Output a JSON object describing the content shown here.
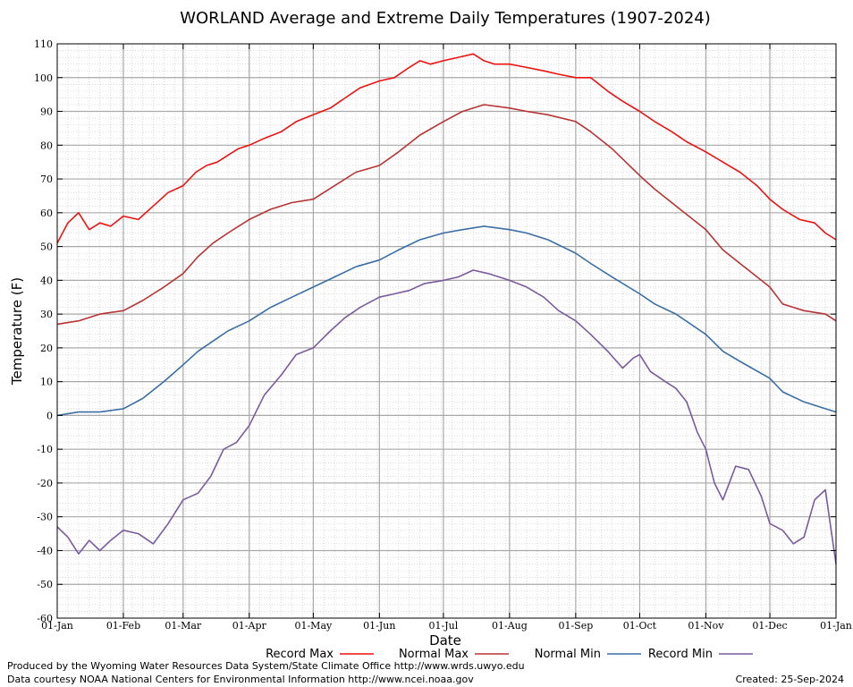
{
  "chart_data": {
    "type": "line",
    "title": "WORLAND Average and Extreme Daily Temperatures (1907-2024)",
    "xlabel": "Date",
    "ylabel": "Temperature (F)",
    "ylim": [
      -60,
      110
    ],
    "yticks": [
      -60,
      -50,
      -40,
      -30,
      -20,
      -10,
      0,
      10,
      20,
      30,
      40,
      50,
      60,
      70,
      80,
      90,
      100,
      110
    ],
    "xlim": [
      0,
      365
    ],
    "xticks": [
      {
        "day": 0,
        "label": "01-Jan"
      },
      {
        "day": 31,
        "label": "01-Feb"
      },
      {
        "day": 59,
        "label": "01-Mar"
      },
      {
        "day": 90,
        "label": "01-Apr"
      },
      {
        "day": 120,
        "label": "01-May"
      },
      {
        "day": 151,
        "label": "01-Jun"
      },
      {
        "day": 181,
        "label": "01-Jul"
      },
      {
        "day": 212,
        "label": "01-Aug"
      },
      {
        "day": 243,
        "label": "01-Sep"
      },
      {
        "day": 273,
        "label": "01-Oct"
      },
      {
        "day": 304,
        "label": "01-Nov"
      },
      {
        "day": 334,
        "label": "01-Dec"
      },
      {
        "day": 365,
        "label": "01-Jan"
      }
    ],
    "grid": true,
    "legend_position": "bottom",
    "series": [
      {
        "name": "Record Max",
        "color": "#ee1111",
        "x": [
          0,
          5,
          10,
          15,
          20,
          25,
          31,
          38,
          45,
          52,
          59,
          65,
          70,
          75,
          80,
          85,
          90,
          97,
          105,
          112,
          120,
          128,
          135,
          142,
          151,
          158,
          165,
          170,
          175,
          181,
          188,
          195,
          200,
          205,
          212,
          220,
          228,
          235,
          243,
          250,
          258,
          265,
          273,
          280,
          288,
          295,
          304,
          312,
          320,
          328,
          334,
          340,
          348,
          355,
          360,
          365
        ],
        "y": [
          51,
          57,
          60,
          55,
          57,
          56,
          59,
          58,
          62,
          66,
          68,
          72,
          74,
          75,
          77,
          79,
          80,
          82,
          84,
          87,
          89,
          91,
          94,
          97,
          99,
          100,
          103,
          105,
          104,
          105,
          106,
          107,
          105,
          104,
          104,
          103,
          102,
          101,
          100,
          100,
          96,
          93,
          90,
          87,
          84,
          81,
          78,
          75,
          72,
          68,
          64,
          61,
          58,
          57,
          54,
          52
        ]
      },
      {
        "name": "Normal Max",
        "color": "#b83333",
        "x": [
          0,
          10,
          20,
          31,
          40,
          50,
          59,
          66,
          73,
          80,
          90,
          100,
          110,
          120,
          130,
          140,
          151,
          160,
          170,
          181,
          190,
          200,
          212,
          220,
          230,
          243,
          250,
          260,
          273,
          280,
          290,
          304,
          312,
          320,
          334,
          340,
          350,
          360,
          365
        ],
        "y": [
          27,
          28,
          30,
          31,
          34,
          38,
          42,
          47,
          51,
          54,
          58,
          61,
          63,
          64,
          68,
          72,
          74,
          78,
          83,
          87,
          90,
          92,
          91,
          90,
          89,
          87,
          84,
          79,
          71,
          67,
          62,
          55,
          49,
          45,
          38,
          33,
          31,
          30,
          28
        ]
      },
      {
        "name": "Normal Min",
        "color": "#3a6ea5",
        "x": [
          0,
          10,
          20,
          31,
          40,
          50,
          59,
          66,
          73,
          80,
          90,
          100,
          110,
          120,
          130,
          140,
          151,
          160,
          170,
          181,
          190,
          200,
          212,
          220,
          230,
          243,
          250,
          260,
          273,
          280,
          290,
          304,
          312,
          320,
          334,
          340,
          350,
          360,
          365
        ],
        "y": [
          0,
          1,
          1,
          2,
          5,
          10,
          15,
          19,
          22,
          25,
          28,
          32,
          35,
          38,
          41,
          44,
          46,
          49,
          52,
          54,
          55,
          56,
          55,
          54,
          52,
          48,
          45,
          41,
          36,
          33,
          30,
          24,
          19,
          16,
          11,
          7,
          4,
          2,
          1
        ]
      },
      {
        "name": "Record Min",
        "color": "#7b5a9e",
        "x": [
          0,
          5,
          10,
          15,
          20,
          25,
          31,
          38,
          45,
          52,
          59,
          66,
          72,
          78,
          84,
          90,
          97,
          105,
          112,
          120,
          128,
          135,
          142,
          151,
          158,
          165,
          172,
          181,
          188,
          195,
          202,
          212,
          220,
          228,
          235,
          243,
          250,
          258,
          265,
          270,
          273,
          278,
          285,
          290,
          295,
          300,
          304,
          308,
          312,
          318,
          324,
          330,
          334,
          340,
          345,
          350,
          355,
          360,
          365
        ],
        "y": [
          -33,
          -36,
          -41,
          -37,
          -40,
          -37,
          -34,
          -35,
          -38,
          -32,
          -25,
          -23,
          -18,
          -10,
          -8,
          -3,
          6,
          12,
          18,
          20,
          25,
          29,
          32,
          35,
          36,
          37,
          39,
          40,
          41,
          43,
          42,
          40,
          38,
          35,
          31,
          28,
          24,
          19,
          14,
          17,
          18,
          13,
          10,
          8,
          4,
          -5,
          -10,
          -20,
          -25,
          -15,
          -16,
          -24,
          -32,
          -34,
          -38,
          -36,
          -25,
          -22,
          -44
        ]
      }
    ]
  },
  "footer": {
    "produced_by": "Produced by the Wyoming Water Resources Data System/State Climate Office http://www.wrds.uwyo.edu",
    "courtesy": "Data courtesy NOAA National Centers for Environmental Information http://www.ncei.noaa.gov",
    "created": "Created: 25-Sep-2024"
  }
}
